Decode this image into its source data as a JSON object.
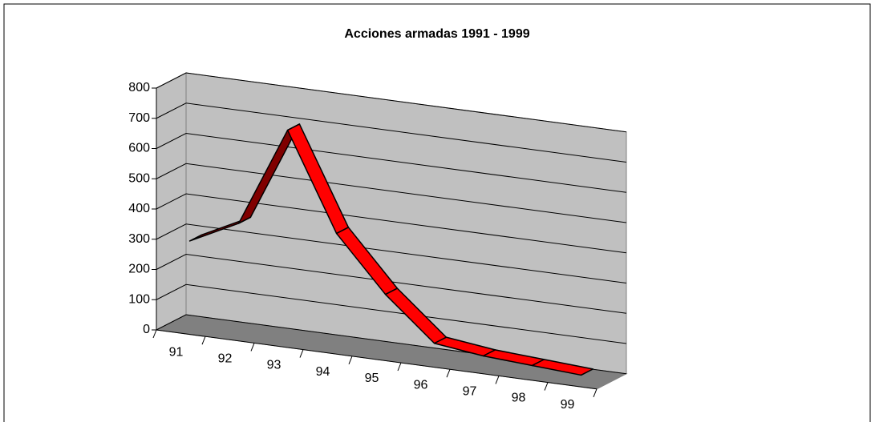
{
  "chart_data": {
    "type": "line3d",
    "title": "Acciones armadas 1991 - 1999",
    "categories": [
      "91",
      "92",
      "93",
      "94",
      "95",
      "96",
      "97",
      "98",
      "99"
    ],
    "values": [
      290,
      370,
      700,
      380,
      200,
      60,
      40,
      30,
      20
    ],
    "color": "#ff0000",
    "ylim": [
      0,
      800
    ],
    "yticks": [
      0,
      100,
      200,
      300,
      400,
      500,
      600,
      700,
      800
    ],
    "grid": true
  }
}
